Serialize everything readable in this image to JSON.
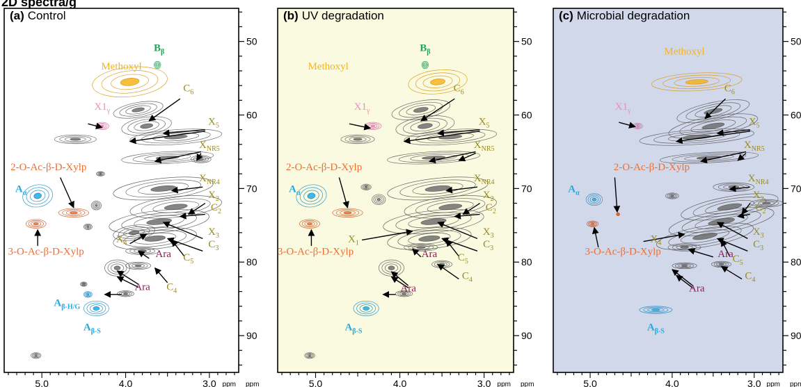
{
  "header_fragment": "2D spectra/g",
  "chart_data": [
    {
      "type": "heatmap",
      "panel_letter": "(a)",
      "panel_title": "Control",
      "background": "#ffffff",
      "x_ticks": [
        "5.0",
        "4.0",
        "3.0"
      ],
      "x_unit": "ppm",
      "y_ticks": [
        "50",
        "60",
        "70",
        "80",
        "90"
      ],
      "y_unit": "ppm",
      "xlim": [
        5.45,
        2.65
      ],
      "ylim": [
        45.5,
        95.0
      ],
      "labels": [
        {
          "text": "Methoxyl",
          "kind": "methoxyl",
          "x": 4.05,
          "y": 53.8
        },
        {
          "text": "B",
          "sub": "β",
          "kind": "bb",
          "x": 3.6,
          "y": 51.3
        },
        {
          "text": "C",
          "sub": "6",
          "kind": "carb",
          "x": 3.25,
          "y": 56.8
        },
        {
          "text": "X1",
          "sub": "γ",
          "kind": "x1",
          "x": 4.28,
          "y": 59.3
        },
        {
          "text": "X",
          "sub": "5",
          "kind": "carb",
          "x": 2.95,
          "y": 61.3
        },
        {
          "text": "X",
          "sub": "NR5",
          "kind": "carb",
          "x": 3.0,
          "y": 64.5
        },
        {
          "text": "2-O-Ac-β-D-Xylp",
          "kind": "ac",
          "x": 4.92,
          "y": 67.5
        },
        {
          "text": "X",
          "sub": "NR4",
          "kind": "carb",
          "x": 3.0,
          "y": 69.0
        },
        {
          "text": "A",
          "sub": "α",
          "kind": "a",
          "x": 5.25,
          "y": 70.5
        },
        {
          "text": "X",
          "sub": "2",
          "kind": "carb",
          "x": 2.95,
          "y": 71.3
        },
        {
          "text": "C",
          "sub": "2",
          "kind": "carb",
          "x": 2.92,
          "y": 73.0
        },
        {
          "text": "X",
          "sub": "3",
          "kind": "carb",
          "x": 2.95,
          "y": 76.3
        },
        {
          "text": "C",
          "sub": "3",
          "kind": "carb",
          "x": 2.95,
          "y": 78.0
        },
        {
          "text": "X",
          "sub": "4",
          "kind": "carb",
          "x": 4.05,
          "y": 77.3
        },
        {
          "text": "3-O-Ac-β-D-Xylp",
          "kind": "ac",
          "x": 4.95,
          "y": 79.0
        },
        {
          "text": "Ara",
          "kind": "ara",
          "x": 3.55,
          "y": 79.3
        },
        {
          "text": "C",
          "sub": "5",
          "kind": "carb",
          "x": 3.25,
          "y": 79.8
        },
        {
          "text": "C",
          "sub": "4",
          "kind": "carb",
          "x": 3.45,
          "y": 83.8
        },
        {
          "text": "Ara",
          "kind": "ara",
          "x": 3.8,
          "y": 83.8
        },
        {
          "text": "A",
          "sub": "β-H/G",
          "kind": "a",
          "x": 4.7,
          "y": 86.0
        },
        {
          "text": "A",
          "sub": "β-S",
          "kind": "a",
          "x": 4.4,
          "y": 89.3
        }
      ]
    },
    {
      "type": "heatmap",
      "panel_letter": "(b)",
      "panel_title": "UV degradation",
      "background": "#fafae1",
      "x_ticks": [
        "5.0",
        "4.0",
        "3.0"
      ],
      "x_unit": "ppm",
      "y_ticks": [
        "50",
        "60",
        "70",
        "80",
        "90"
      ],
      "y_unit": "ppm",
      "xlim": [
        5.45,
        2.65
      ],
      "ylim": [
        45.5,
        95.0
      ],
      "labels": [
        {
          "text": "Methoxyl",
          "kind": "methoxyl",
          "x": 4.85,
          "y": 53.8
        },
        {
          "text": "B",
          "sub": "β",
          "kind": "bb",
          "x": 3.7,
          "y": 51.3
        },
        {
          "text": "C",
          "sub": "6",
          "kind": "carb",
          "x": 3.3,
          "y": 56.8
        },
        {
          "text": "X1",
          "sub": "γ",
          "kind": "x1",
          "x": 4.45,
          "y": 59.3
        },
        {
          "text": "X",
          "sub": "5",
          "kind": "carb",
          "x": 3.0,
          "y": 61.3
        },
        {
          "text": "X",
          "sub": "NR5",
          "kind": "carb",
          "x": 3.0,
          "y": 64.5
        },
        {
          "text": "2-O-Ac-β-D-Xylp",
          "kind": "ac",
          "x": 4.9,
          "y": 67.5
        },
        {
          "text": "X",
          "sub": "NR4",
          "kind": "carb",
          "x": 3.0,
          "y": 69.0
        },
        {
          "text": "A",
          "sub": "α",
          "kind": "a",
          "x": 5.25,
          "y": 70.5
        },
        {
          "text": "X",
          "sub": "2",
          "kind": "carb",
          "x": 2.95,
          "y": 71.3
        },
        {
          "text": "C",
          "sub": "2",
          "kind": "carb",
          "x": 2.92,
          "y": 73.0
        },
        {
          "text": "X",
          "sub": "1",
          "kind": "carb",
          "x": 4.55,
          "y": 77.3
        },
        {
          "text": "X",
          "sub": "3",
          "kind": "carb",
          "x": 2.95,
          "y": 76.3
        },
        {
          "text": "C",
          "sub": "3",
          "kind": "carb",
          "x": 2.95,
          "y": 78.0
        },
        {
          "text": "3-O-Ac-β-D-Xylp",
          "kind": "ac",
          "x": 5.0,
          "y": 79.0
        },
        {
          "text": "Ara",
          "kind": "ara",
          "x": 3.65,
          "y": 79.3
        },
        {
          "text": "C",
          "sub": "5",
          "kind": "carb",
          "x": 3.25,
          "y": 79.8
        },
        {
          "text": "C",
          "sub": "4",
          "kind": "carb",
          "x": 3.2,
          "y": 82.3
        },
        {
          "text": "Ara",
          "kind": "ara",
          "x": 3.9,
          "y": 84.0
        },
        {
          "text": "A",
          "sub": "β-S",
          "kind": "a",
          "x": 4.55,
          "y": 89.3
        }
      ]
    },
    {
      "type": "heatmap",
      "panel_letter": "(c)",
      "panel_title": "Microbial degradation",
      "background": "#d1d8ea",
      "x_ticks": [
        "5.0",
        "4.0",
        "3.0"
      ],
      "x_unit": "ppm",
      "y_ticks": [
        "50",
        "60",
        "70",
        "80",
        "90"
      ],
      "y_unit": "ppm",
      "xlim": [
        5.45,
        2.65
      ],
      "ylim": [
        45.5,
        95.0
      ],
      "labels": [
        {
          "text": "Methoxyl",
          "kind": "methoxyl",
          "x": 3.85,
          "y": 51.8
        },
        {
          "text": "C",
          "sub": "6",
          "kind": "carb",
          "x": 3.3,
          "y": 56.8
        },
        {
          "text": "X1",
          "sub": "γ",
          "kind": "x1",
          "x": 4.6,
          "y": 59.3
        },
        {
          "text": "X",
          "sub": "5",
          "kind": "carb",
          "x": 3.0,
          "y": 61.3
        },
        {
          "text": "X",
          "sub": "NR5",
          "kind": "carb",
          "x": 3.0,
          "y": 64.5
        },
        {
          "text": "2-O-Ac-β-D-Xylp",
          "kind": "ac",
          "x": 4.25,
          "y": 67.5
        },
        {
          "text": "X",
          "sub": "NR4",
          "kind": "carb",
          "x": 2.95,
          "y": 69.0
        },
        {
          "text": "A",
          "sub": "α",
          "kind": "a",
          "x": 5.2,
          "y": 70.5
        },
        {
          "text": "X",
          "sub": "2",
          "kind": "carb",
          "x": 2.95,
          "y": 71.3
        },
        {
          "text": "C",
          "sub": "2",
          "kind": "carb",
          "x": 2.92,
          "y": 73.0
        },
        {
          "text": "X",
          "sub": "4",
          "kind": "carb",
          "x": 4.2,
          "y": 77.3
        },
        {
          "text": "X",
          "sub": "3",
          "kind": "carb",
          "x": 2.95,
          "y": 76.3
        },
        {
          "text": "C",
          "sub": "3",
          "kind": "carb",
          "x": 2.95,
          "y": 78.0
        },
        {
          "text": "3-O-Ac-β-D-Xylp",
          "kind": "ac",
          "x": 4.6,
          "y": 79.0
        },
        {
          "text": "Ara",
          "kind": "ara",
          "x": 3.35,
          "y": 79.3
        },
        {
          "text": "C",
          "sub": "5",
          "kind": "carb",
          "x": 3.2,
          "y": 80.0
        },
        {
          "text": "C",
          "sub": "4",
          "kind": "carb",
          "x": 3.05,
          "y": 82.3
        },
        {
          "text": "Ara",
          "kind": "ara",
          "x": 3.7,
          "y": 84.0
        },
        {
          "text": "A",
          "sub": "β-S",
          "kind": "a",
          "x": 4.2,
          "y": 89.3
        }
      ]
    }
  ],
  "colors": {
    "methoxyl": "#f5b41f",
    "bb": "#2aa15b",
    "x1": "#e98fbd",
    "acetyl": "#ee6d32",
    "a": "#27a9e1",
    "carb": "#9a8b1d",
    "ara": "#8a1d5a",
    "cluster": "#6e6e6e"
  }
}
